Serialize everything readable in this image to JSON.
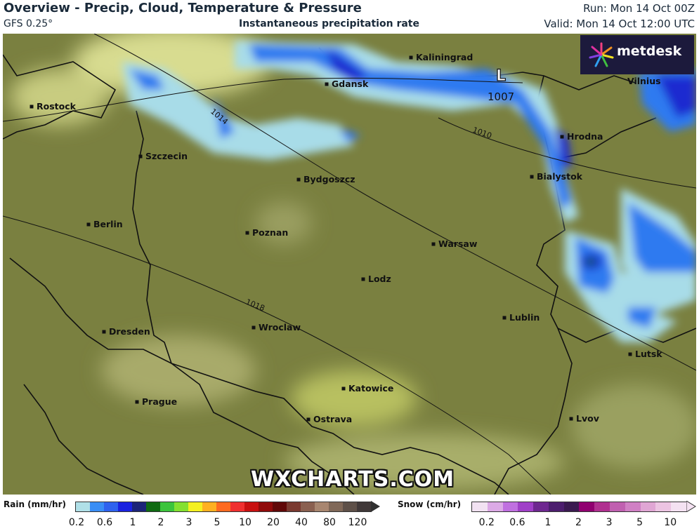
{
  "header": {
    "title": "Overview - Precip, Cloud, Temperature & Pressure",
    "model": "GFS 0.25°",
    "subtitle": "Instantaneous precipitation rate",
    "run": "Run: Mon 14 Oct 00Z",
    "valid": "Valid: Mon 14 Oct 12:00 UTC"
  },
  "logo": {
    "text": "metdesk"
  },
  "watermark": "WXCHARTS.COM",
  "map": {
    "cities": [
      "Kaliningrad",
      "Gdansk",
      "Rostock",
      "Hrodna",
      "Szczecin",
      "Bialystok",
      "Bydgoszcz",
      "Berlin",
      "Poznan",
      "Warsaw",
      "Lodz",
      "Lublin",
      "Dresden",
      "Wroclaw",
      "Lutsk",
      "Katowice",
      "Prague",
      "Ostrava",
      "Lvov",
      "Vilnius"
    ],
    "isobars": [
      "1014",
      "1010",
      "1018"
    ],
    "low": {
      "symbol": "L",
      "pressure": "1007"
    },
    "colors": {
      "land": "#7a8040",
      "light_precip": "#a8dce8",
      "precip": "#2e7af0",
      "heavy_precip": "#1a2ad0"
    }
  },
  "legend": {
    "rain": {
      "label": "Rain (mm/hr)",
      "ticks": [
        "0.2",
        "0.6",
        "1",
        "2",
        "3",
        "5",
        "10",
        "20",
        "40",
        "80",
        "120"
      ],
      "colors": [
        "#b0e0e8",
        "#3a8ef5",
        "#2f62ee",
        "#1a22e0",
        "#1c2478",
        "#0f6a12",
        "#3cc43c",
        "#84e030",
        "#f4f020",
        "#ffb020",
        "#ff6a20",
        "#f03030",
        "#c81010",
        "#900a0a",
        "#600808",
        "#7a3a30",
        "#8a6050",
        "#a88670",
        "#806858",
        "#5e5048",
        "#403838"
      ]
    },
    "snow": {
      "label": "Snow (cm/hr)",
      "ticks": [
        "0.2",
        "0.6",
        "1",
        "2",
        "3",
        "5",
        "10"
      ],
      "colors": [
        "#f2e2f2",
        "#dcaae6",
        "#c070e0",
        "#a040c8",
        "#6e2890",
        "#4c1e6e",
        "#3a1a50",
        "#900070",
        "#b03090",
        "#c060b0",
        "#d080c4",
        "#e0a6d4",
        "#ecc4e2",
        "#f4e2f2"
      ]
    }
  }
}
